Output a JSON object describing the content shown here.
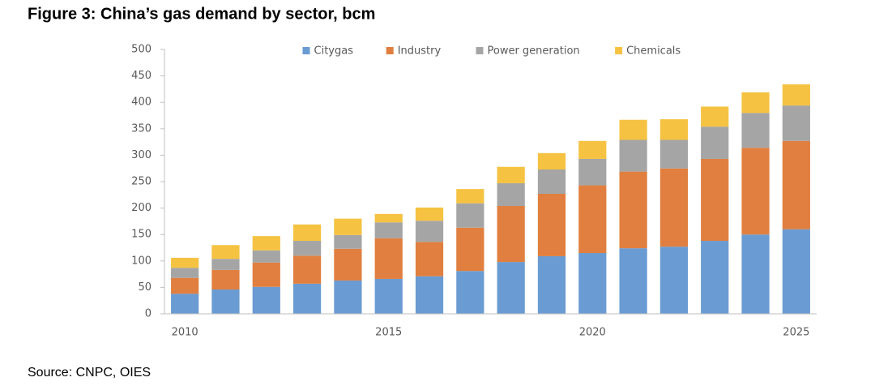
{
  "chart_data": {
    "type": "stacked_bar",
    "title": "Figure 3: China’s gas demand by sector, bcm",
    "source": "Source: CNPC, OIES",
    "categories": [
      "2010",
      null,
      null,
      null,
      null,
      "2015",
      null,
      null,
      null,
      null,
      "2020",
      null,
      null,
      null,
      null,
      "2025"
    ],
    "series": [
      {
        "name": "Citygas",
        "color": "#6a9bd2",
        "values": [
          38,
          46,
          51,
          57,
          63,
          66,
          71,
          81,
          98,
          109,
          115,
          124,
          127,
          138,
          150,
          160
        ]
      },
      {
        "name": "Industry",
        "color": "#e07f3f",
        "values": [
          30,
          37,
          46,
          53,
          60,
          77,
          65,
          82,
          106,
          118,
          128,
          145,
          148,
          155,
          164,
          167
        ]
      },
      {
        "name": "Power generation",
        "color": "#a5a5a5",
        "values": [
          19,
          21,
          23,
          28,
          26,
          30,
          40,
          46,
          43,
          46,
          50,
          60,
          54,
          61,
          66,
          67
        ]
      },
      {
        "name": "Chemicals",
        "color": "#f5c242",
        "values": [
          19,
          26,
          27,
          31,
          31,
          16,
          25,
          27,
          31,
          31,
          34,
          38,
          39,
          38,
          39,
          40
        ]
      }
    ],
    "ylim": [
      0,
      500
    ],
    "yticks": [
      0,
      50,
      100,
      150,
      200,
      250,
      300,
      350,
      400,
      450,
      500
    ],
    "grid": false,
    "legend": "top"
  }
}
